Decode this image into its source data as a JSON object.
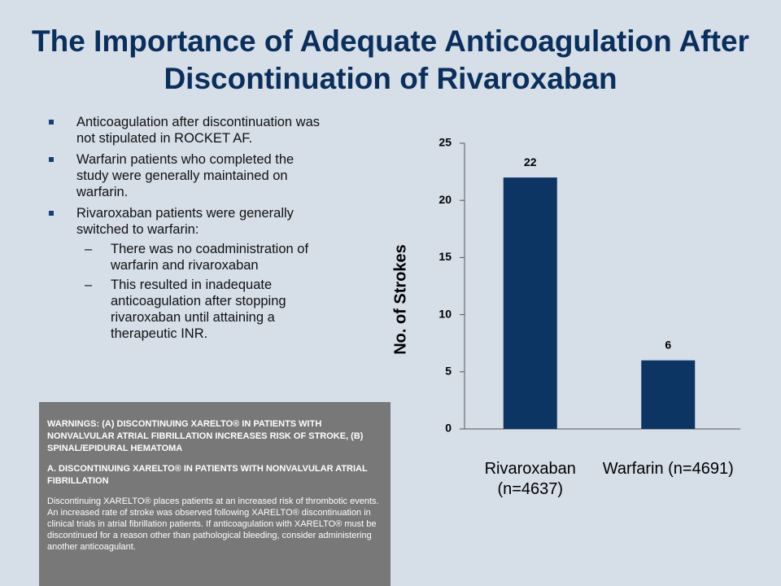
{
  "title": "The Importance of Adequate Anticoagulation After Discontinuation of Rivaroxaban",
  "bullets": [
    {
      "text": "Anticoagulation after discontinuation was not stipulated in ROCKET AF."
    },
    {
      "text": "Warfarin patients who completed the study were generally maintained on warfarin."
    },
    {
      "text": "Rivaroxaban patients were generally switched to warfarin:",
      "sub": [
        "There was no coadministration of warfarin and rivaroxaban",
        "This resulted in inadequate anticoagulation after stopping rivaroxaban until attaining a therapeutic INR."
      ]
    }
  ],
  "warning": {
    "heading": "WARNINGS: (A) DISCONTINUING XARELTO® IN PATIENTS WITH NONVALVULAR ATRIAL FIBRILLATION INCREASES RISK OF STROKE, (B) SPINAL/EPIDURAL HEMATOMA",
    "subheading": "A. DISCONTINUING XARELTO® IN PATIENTS WITH NONVALVULAR ATRIAL FIBRILLATION",
    "body": "Discontinuing XARELTO® places patients at an increased risk of thrombotic events. An increased rate of stroke was observed following XARELTO® discontinuation in clinical trials in atrial fibrillation patients. If anticoagulation with XARELTO® must be discontinued for a reason other than pathological bleeding, consider administering another anticoagulant."
  },
  "chart_data": {
    "type": "bar",
    "y_label": "No. of Strokes",
    "categories": [
      "Rivaroxaban (n=4637)",
      "Warfarin (n=4691)"
    ],
    "values": [
      22,
      6
    ],
    "color": "#0d3563",
    "ylim": [
      0,
      25
    ],
    "yticks": [
      0,
      5,
      10,
      15,
      20,
      25
    ]
  }
}
